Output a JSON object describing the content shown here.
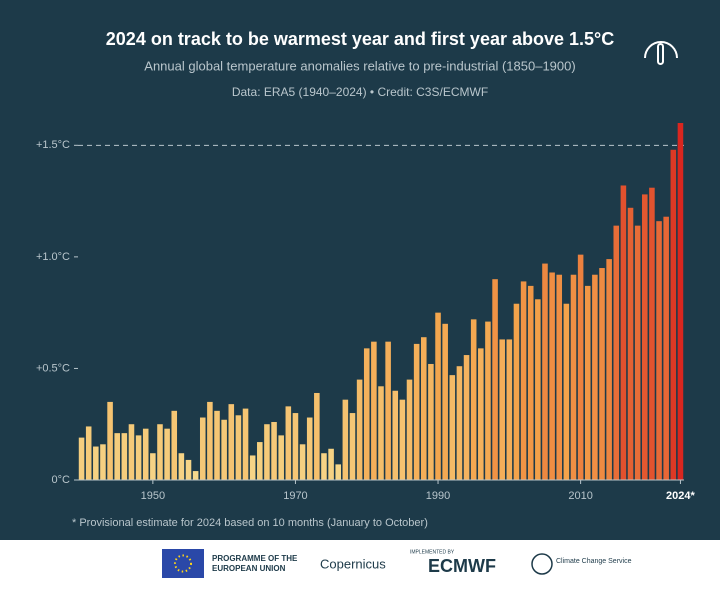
{
  "chart_data": {
    "type": "bar",
    "title": "2024 on track to be warmest year and first year above 1.5°C",
    "subtitle": "Annual global temperature anomalies relative to pre-industrial (1850–1900)",
    "source": "Data: ERA5 (1940–2024)  •  Credit: C3S/ECMWF",
    "note": "* Provisional estimate for 2024 based on 10 months (January to October)",
    "x": [
      1940,
      1941,
      1942,
      1943,
      1944,
      1945,
      1946,
      1947,
      1948,
      1949,
      1950,
      1951,
      1952,
      1953,
      1954,
      1955,
      1956,
      1957,
      1958,
      1959,
      1960,
      1961,
      1962,
      1963,
      1964,
      1965,
      1966,
      1967,
      1968,
      1969,
      1970,
      1971,
      1972,
      1973,
      1974,
      1975,
      1976,
      1977,
      1978,
      1979,
      1980,
      1981,
      1982,
      1983,
      1984,
      1985,
      1986,
      1987,
      1988,
      1989,
      1990,
      1991,
      1992,
      1993,
      1994,
      1995,
      1996,
      1997,
      1998,
      1999,
      2000,
      2001,
      2002,
      2003,
      2004,
      2005,
      2006,
      2007,
      2008,
      2009,
      2010,
      2011,
      2012,
      2013,
      2014,
      2015,
      2016,
      2017,
      2018,
      2019,
      2020,
      2021,
      2022,
      2023,
      2024
    ],
    "values": [
      0.19,
      0.24,
      0.15,
      0.16,
      0.35,
      0.21,
      0.21,
      0.25,
      0.2,
      0.23,
      0.12,
      0.25,
      0.23,
      0.31,
      0.12,
      0.09,
      0.04,
      0.28,
      0.35,
      0.31,
      0.27,
      0.34,
      0.29,
      0.32,
      0.11,
      0.17,
      0.25,
      0.26,
      0.2,
      0.33,
      0.3,
      0.16,
      0.28,
      0.39,
      0.12,
      0.14,
      0.07,
      0.36,
      0.3,
      0.45,
      0.59,
      0.62,
      0.42,
      0.62,
      0.4,
      0.36,
      0.45,
      0.61,
      0.64,
      0.52,
      0.75,
      0.7,
      0.47,
      0.51,
      0.56,
      0.72,
      0.59,
      0.71,
      0.9,
      0.63,
      0.63,
      0.79,
      0.89,
      0.87,
      0.81,
      0.97,
      0.93,
      0.92,
      0.79,
      0.92,
      1.01,
      0.87,
      0.92,
      0.95,
      0.99,
      1.14,
      1.32,
      1.22,
      1.14,
      1.28,
      1.31,
      1.16,
      1.18,
      1.48,
      1.6
    ],
    "color_scale": [
      "#f6dc8f",
      "#f3a24a",
      "#d9261f"
    ],
    "xlim": [
      1939.5,
      2024.5
    ],
    "xticks": [
      1950,
      1970,
      1990,
      2010,
      {
        "value": 2024,
        "label": "2024*"
      }
    ],
    "ylim": [
      0,
      1.6
    ],
    "yticks": [
      {
        "value": 0,
        "label": "0°C"
      },
      {
        "value": 0.5,
        "label": "+0.5°C"
      },
      {
        "value": 1,
        "label": "+1.0°C"
      },
      {
        "value": 1.5,
        "label": "+1.5°C"
      }
    ],
    "reference_line": 1.5,
    "grid": false
  },
  "footer": {
    "eu": [
      "PROGRAMME OF THE",
      "EUROPEAN UNION"
    ],
    "copernicus": "Copernicus",
    "implemented": "IMPLEMENTED BY",
    "ecmwf": "ECMWF",
    "c3s": "Climate Change Service"
  }
}
